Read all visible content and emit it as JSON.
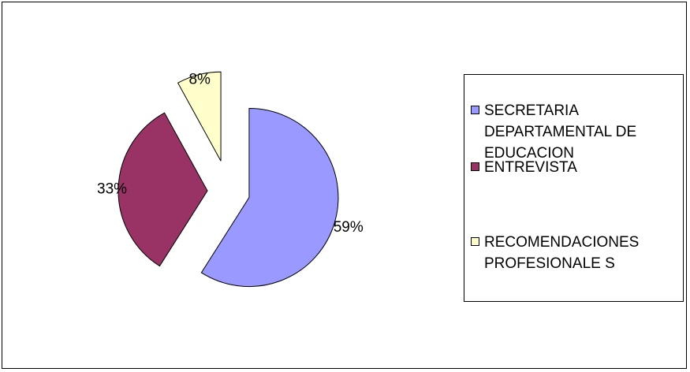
{
  "chart_data": {
    "type": "pie",
    "title": "",
    "exploded": true,
    "slices": [
      {
        "name": "SECRETARIA\nDEPARTAMENTAL DE\nEDUCACION",
        "value": 59,
        "label": "59%",
        "color": "#9999ff"
      },
      {
        "name": "ENTREVISTA",
        "value": 33,
        "label": "33%",
        "color": "#993366"
      },
      {
        "name": "RECOMENDACIONES\nPROFESIONALE S",
        "value": 8,
        "label": "8%",
        "color": "#ffffcc"
      }
    ],
    "legend": {
      "position": "right"
    }
  }
}
